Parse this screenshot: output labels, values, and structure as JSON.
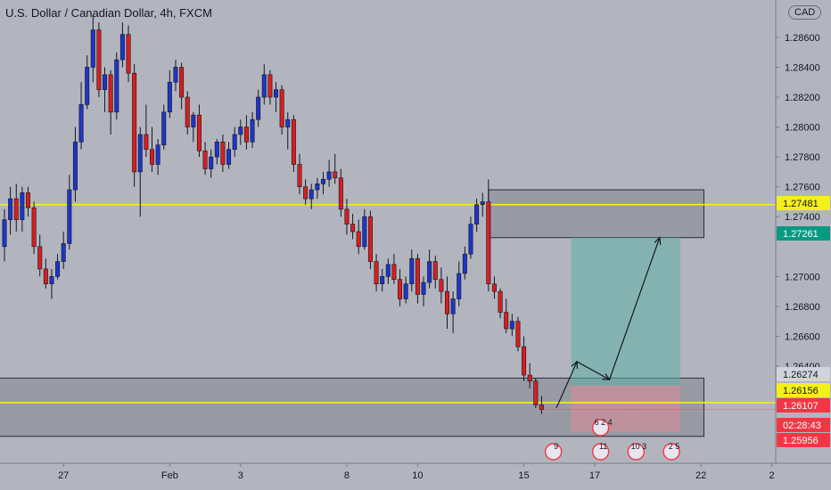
{
  "header": {
    "title": "U.S. Dollar / Canadian Dollar, 4h, FXCM",
    "currency": "CAD"
  },
  "chart_data": {
    "type": "candlestick",
    "symbol": "USDCAD",
    "timeframe": "4h",
    "source": "FXCM",
    "ylim": [
      1.2575,
      1.2885
    ],
    "y_ticks": [
      1.286,
      1.284,
      1.282,
      1.28,
      1.278,
      1.276,
      1.274,
      1.27,
      1.268,
      1.266,
      1.264
    ],
    "x_ticks": [
      {
        "label": "27",
        "index": 10
      },
      {
        "label": "Feb",
        "index": 28
      },
      {
        "label": "3",
        "index": 40
      },
      {
        "label": "8",
        "index": 58
      },
      {
        "label": "10",
        "index": 70
      },
      {
        "label": "15",
        "index": 88
      },
      {
        "label": "17",
        "index": 100
      },
      {
        "label": "22",
        "index": 118
      },
      {
        "label": "2",
        "index": 130
      }
    ],
    "price_labels": [
      {
        "value": "1.27481",
        "bg": "#f5f019",
        "fg": "#131722"
      },
      {
        "value": "1.27261",
        "bg": "#089981",
        "fg": "#ffffff"
      },
      {
        "value": "1.26274",
        "bg": "#d1d4dc",
        "fg": "#131722"
      },
      {
        "value": "1.26156",
        "bg": "#f5f019",
        "fg": "#131722"
      },
      {
        "value": "1.26107",
        "bg": "#f23645",
        "fg": "#ffffff"
      },
      {
        "value": "02:28:43",
        "bg": "#f23645",
        "fg": "#ffffff"
      },
      {
        "value": "1.25956",
        "bg": "#f23645",
        "fg": "#ffffff"
      }
    ],
    "horizontal_lines": [
      1.27481,
      1.26156
    ],
    "zones": [
      {
        "x0": 82,
        "x1": 118.5,
        "top": 1.2758,
        "bottom": 1.2726
      },
      {
        "x0": -1,
        "x1": 118.5,
        "top": 1.2632,
        "bottom": 1.2593
      }
    ],
    "position": {
      "x0": 96,
      "x1": 114.5,
      "entry": 1.2627,
      "target": 1.2726,
      "stop": 1.2596
    },
    "path_arrow": [
      [
        93.5,
        1.2612
      ],
      [
        97,
        1.2643
      ],
      [
        102.5,
        1.2631
      ],
      [
        111,
        1.2726
      ]
    ],
    "events": [
      {
        "index": 93,
        "label": "9"
      },
      {
        "index": 101,
        "label": "11"
      },
      {
        "index": 101,
        "label": "6 2 4"
      },
      {
        "index": 107,
        "label": "10 3"
      },
      {
        "index": 113,
        "label": "2 5"
      }
    ],
    "candles": [
      [
        1.272,
        1.2745,
        1.271,
        1.2738
      ],
      [
        1.2738,
        1.276,
        1.2728,
        1.2752
      ],
      [
        1.2752,
        1.2762,
        1.273,
        1.2738
      ],
      [
        1.2738,
        1.276,
        1.273,
        1.2756
      ],
      [
        1.2756,
        1.276,
        1.274,
        1.2746
      ],
      [
        1.2746,
        1.275,
        1.2715,
        1.272
      ],
      [
        1.272,
        1.2728,
        1.27,
        1.2705
      ],
      [
        1.2705,
        1.2712,
        1.2692,
        1.2695
      ],
      [
        1.2695,
        1.2705,
        1.2685,
        1.27
      ],
      [
        1.27,
        1.2715,
        1.2698,
        1.271
      ],
      [
        1.271,
        1.273,
        1.2705,
        1.2722
      ],
      [
        1.2722,
        1.2768,
        1.2718,
        1.2758
      ],
      [
        1.2758,
        1.28,
        1.275,
        1.279
      ],
      [
        1.279,
        1.283,
        1.2785,
        1.2815
      ],
      [
        1.2815,
        1.2848,
        1.2812,
        1.284
      ],
      [
        1.284,
        1.2875,
        1.283,
        1.2865
      ],
      [
        1.2865,
        1.287,
        1.282,
        1.2825
      ],
      [
        1.2825,
        1.284,
        1.281,
        1.2835
      ],
      [
        1.2835,
        1.2838,
        1.2795,
        1.281
      ],
      [
        1.281,
        1.285,
        1.2805,
        1.2845
      ],
      [
        1.2845,
        1.287,
        1.284,
        1.2862
      ],
      [
        1.2862,
        1.2868,
        1.283,
        1.2836
      ],
      [
        1.2836,
        1.2842,
        1.276,
        1.277
      ],
      [
        1.277,
        1.28,
        1.274,
        1.2795
      ],
      [
        1.2795,
        1.2815,
        1.278,
        1.2785
      ],
      [
        1.2785,
        1.28,
        1.277,
        1.2775
      ],
      [
        1.2775,
        1.2792,
        1.2768,
        1.2788
      ],
      [
        1.2788,
        1.2815,
        1.2785,
        1.281
      ],
      [
        1.281,
        1.2838,
        1.2806,
        1.283
      ],
      [
        1.283,
        1.2845,
        1.2824,
        1.284
      ],
      [
        1.284,
        1.2843,
        1.2812,
        1.282
      ],
      [
        1.282,
        1.2824,
        1.2795,
        1.28
      ],
      [
        1.28,
        1.281,
        1.279,
        1.2808
      ],
      [
        1.2808,
        1.2815,
        1.278,
        1.2784
      ],
      [
        1.2784,
        1.279,
        1.2768,
        1.2772
      ],
      [
        1.2772,
        1.2785,
        1.2766,
        1.278
      ],
      [
        1.278,
        1.2792,
        1.2775,
        1.279
      ],
      [
        1.279,
        1.2795,
        1.277,
        1.2775
      ],
      [
        1.2775,
        1.279,
        1.2772,
        1.2785
      ],
      [
        1.2785,
        1.28,
        1.278,
        1.2795
      ],
      [
        1.2795,
        1.2805,
        1.2788,
        1.28
      ],
      [
        1.28,
        1.2808,
        1.2785,
        1.279
      ],
      [
        1.279,
        1.281,
        1.2786,
        1.2805
      ],
      [
        1.2805,
        1.2825,
        1.28,
        1.282
      ],
      [
        1.282,
        1.2842,
        1.2815,
        1.2835
      ],
      [
        1.2835,
        1.2838,
        1.2815,
        1.282
      ],
      [
        1.282,
        1.283,
        1.281,
        1.2825
      ],
      [
        1.2825,
        1.2828,
        1.2795,
        1.28
      ],
      [
        1.28,
        1.281,
        1.2785,
        1.2805
      ],
      [
        1.2805,
        1.2808,
        1.277,
        1.2775
      ],
      [
        1.2775,
        1.2782,
        1.2755,
        1.276
      ],
      [
        1.276,
        1.2765,
        1.2748,
        1.2752
      ],
      [
        1.2752,
        1.2762,
        1.2745,
        1.2758
      ],
      [
        1.2758,
        1.2766,
        1.2752,
        1.2762
      ],
      [
        1.2762,
        1.277,
        1.2755,
        1.2765
      ],
      [
        1.2765,
        1.2778,
        1.276,
        1.277
      ],
      [
        1.277,
        1.2782,
        1.2762,
        1.2766
      ],
      [
        1.2766,
        1.2772,
        1.274,
        1.2745
      ],
      [
        1.2745,
        1.2752,
        1.2728,
        1.2735
      ],
      [
        1.2735,
        1.2742,
        1.2725,
        1.273
      ],
      [
        1.273,
        1.2738,
        1.2715,
        1.272
      ],
      [
        1.272,
        1.2745,
        1.2718,
        1.274
      ],
      [
        1.274,
        1.2744,
        1.2705,
        1.271
      ],
      [
        1.271,
        1.2715,
        1.269,
        1.2695
      ],
      [
        1.2695,
        1.2705,
        1.269,
        1.27
      ],
      [
        1.27,
        1.2712,
        1.2695,
        1.2708
      ],
      [
        1.2708,
        1.2715,
        1.2695,
        1.2698
      ],
      [
        1.2698,
        1.2705,
        1.268,
        1.2685
      ],
      [
        1.2685,
        1.27,
        1.2682,
        1.2695
      ],
      [
        1.2695,
        1.2718,
        1.269,
        1.2712
      ],
      [
        1.2712,
        1.2715,
        1.2682,
        1.2688
      ],
      [
        1.2688,
        1.27,
        1.268,
        1.2696
      ],
      [
        1.2696,
        1.2718,
        1.2692,
        1.271
      ],
      [
        1.271,
        1.2714,
        1.2692,
        1.2698
      ],
      [
        1.2698,
        1.2706,
        1.2682,
        1.269
      ],
      [
        1.269,
        1.27,
        1.2665,
        1.2675
      ],
      [
        1.2675,
        1.269,
        1.2662,
        1.2685
      ],
      [
        1.2685,
        1.271,
        1.268,
        1.2702
      ],
      [
        1.2702,
        1.272,
        1.2698,
        1.2715
      ],
      [
        1.2715,
        1.274,
        1.2712,
        1.2735
      ],
      [
        1.2735,
        1.2752,
        1.273,
        1.2748
      ],
      [
        1.2748,
        1.2756,
        1.274,
        1.275
      ],
      [
        1.275,
        1.2765,
        1.269,
        1.2695
      ],
      [
        1.2695,
        1.27,
        1.2685,
        1.269
      ],
      [
        1.269,
        1.2692,
        1.2672,
        1.2676
      ],
      [
        1.2676,
        1.2685,
        1.2662,
        1.2665
      ],
      [
        1.2665,
        1.2675,
        1.266,
        1.267
      ],
      [
        1.267,
        1.2673,
        1.265,
        1.2653
      ],
      [
        1.2653,
        1.266,
        1.263,
        1.2634
      ],
      [
        1.2634,
        1.2642,
        1.2625,
        1.263
      ],
      [
        1.263,
        1.2632,
        1.2612,
        1.2614
      ],
      [
        1.2614,
        1.262,
        1.2608,
        1.2611
      ]
    ]
  }
}
